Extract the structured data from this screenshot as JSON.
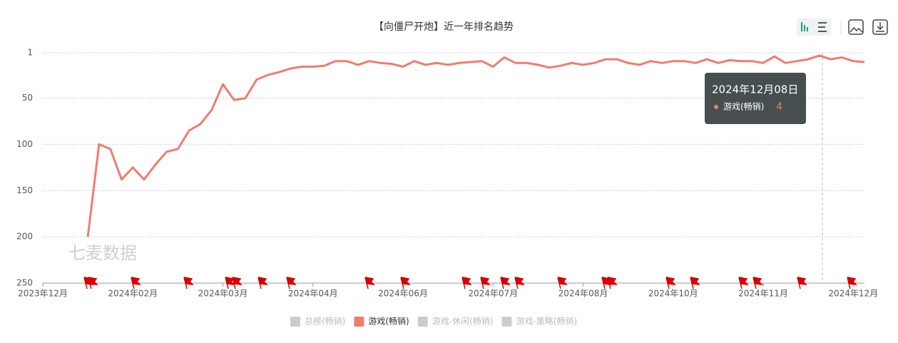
{
  "chart_data": {
    "type": "line",
    "title": "【向僵尸开炮】近一年排名趋势",
    "watermark": "七麦数据",
    "categories": [
      "2023年12月",
      null,
      null,
      null,
      null,
      null,
      null,
      null,
      "2024年02月",
      null,
      null,
      null,
      null,
      null,
      null,
      null,
      "2024年03月",
      null,
      null,
      null,
      null,
      null,
      null,
      null,
      "2024年04月",
      null,
      null,
      null,
      null,
      null,
      null,
      null,
      "2024年06月",
      null,
      null,
      null,
      null,
      null,
      null,
      null,
      "2024年07月",
      null,
      null,
      null,
      null,
      null,
      null,
      null,
      "2024年08月",
      null,
      null,
      null,
      null,
      null,
      null,
      null,
      "2024年10月",
      null,
      null,
      null,
      null,
      null,
      null,
      null,
      "2024年11月",
      null,
      null,
      null,
      null,
      null,
      null,
      null,
      "2024年12月",
      null
    ],
    "series": [
      {
        "name": "游戏(畅销)",
        "color": "#f07c6e",
        "values": [
          null,
          null,
          null,
          null,
          200,
          100,
          105,
          138,
          125,
          138,
          122,
          108,
          105,
          85,
          78,
          63,
          35,
          52,
          50,
          30,
          25,
          22,
          18,
          16,
          16,
          15,
          10,
          10,
          14,
          10,
          12,
          13,
          16,
          10,
          14,
          12,
          14,
          12,
          11,
          10,
          16,
          6,
          12,
          12,
          14,
          17,
          15,
          12,
          14,
          12,
          8,
          8,
          12,
          14,
          10,
          12,
          10,
          10,
          12,
          8,
          12,
          9,
          10,
          10,
          12,
          5,
          12,
          10,
          8,
          4,
          8,
          6,
          10,
          11
        ]
      }
    ],
    "ylim": [
      1,
      250
    ],
    "y_inverted": true,
    "yticks": [
      1,
      50,
      100,
      150,
      200,
      250
    ],
    "grid": true,
    "legend": [
      {
        "name": "总榜(畅销)",
        "color": "#cccccc"
      },
      {
        "name": "游戏(畅销)",
        "color": "#f07c6e"
      },
      {
        "name": "游戏-休闲(畅销)",
        "color": "#cccccc"
      },
      {
        "name": "游戏-策略(畅销)",
        "color": "#cccccc"
      }
    ],
    "tooltip": {
      "title": "2024年12月08日",
      "series": "游戏(畅销)",
      "value": 4
    }
  }
}
